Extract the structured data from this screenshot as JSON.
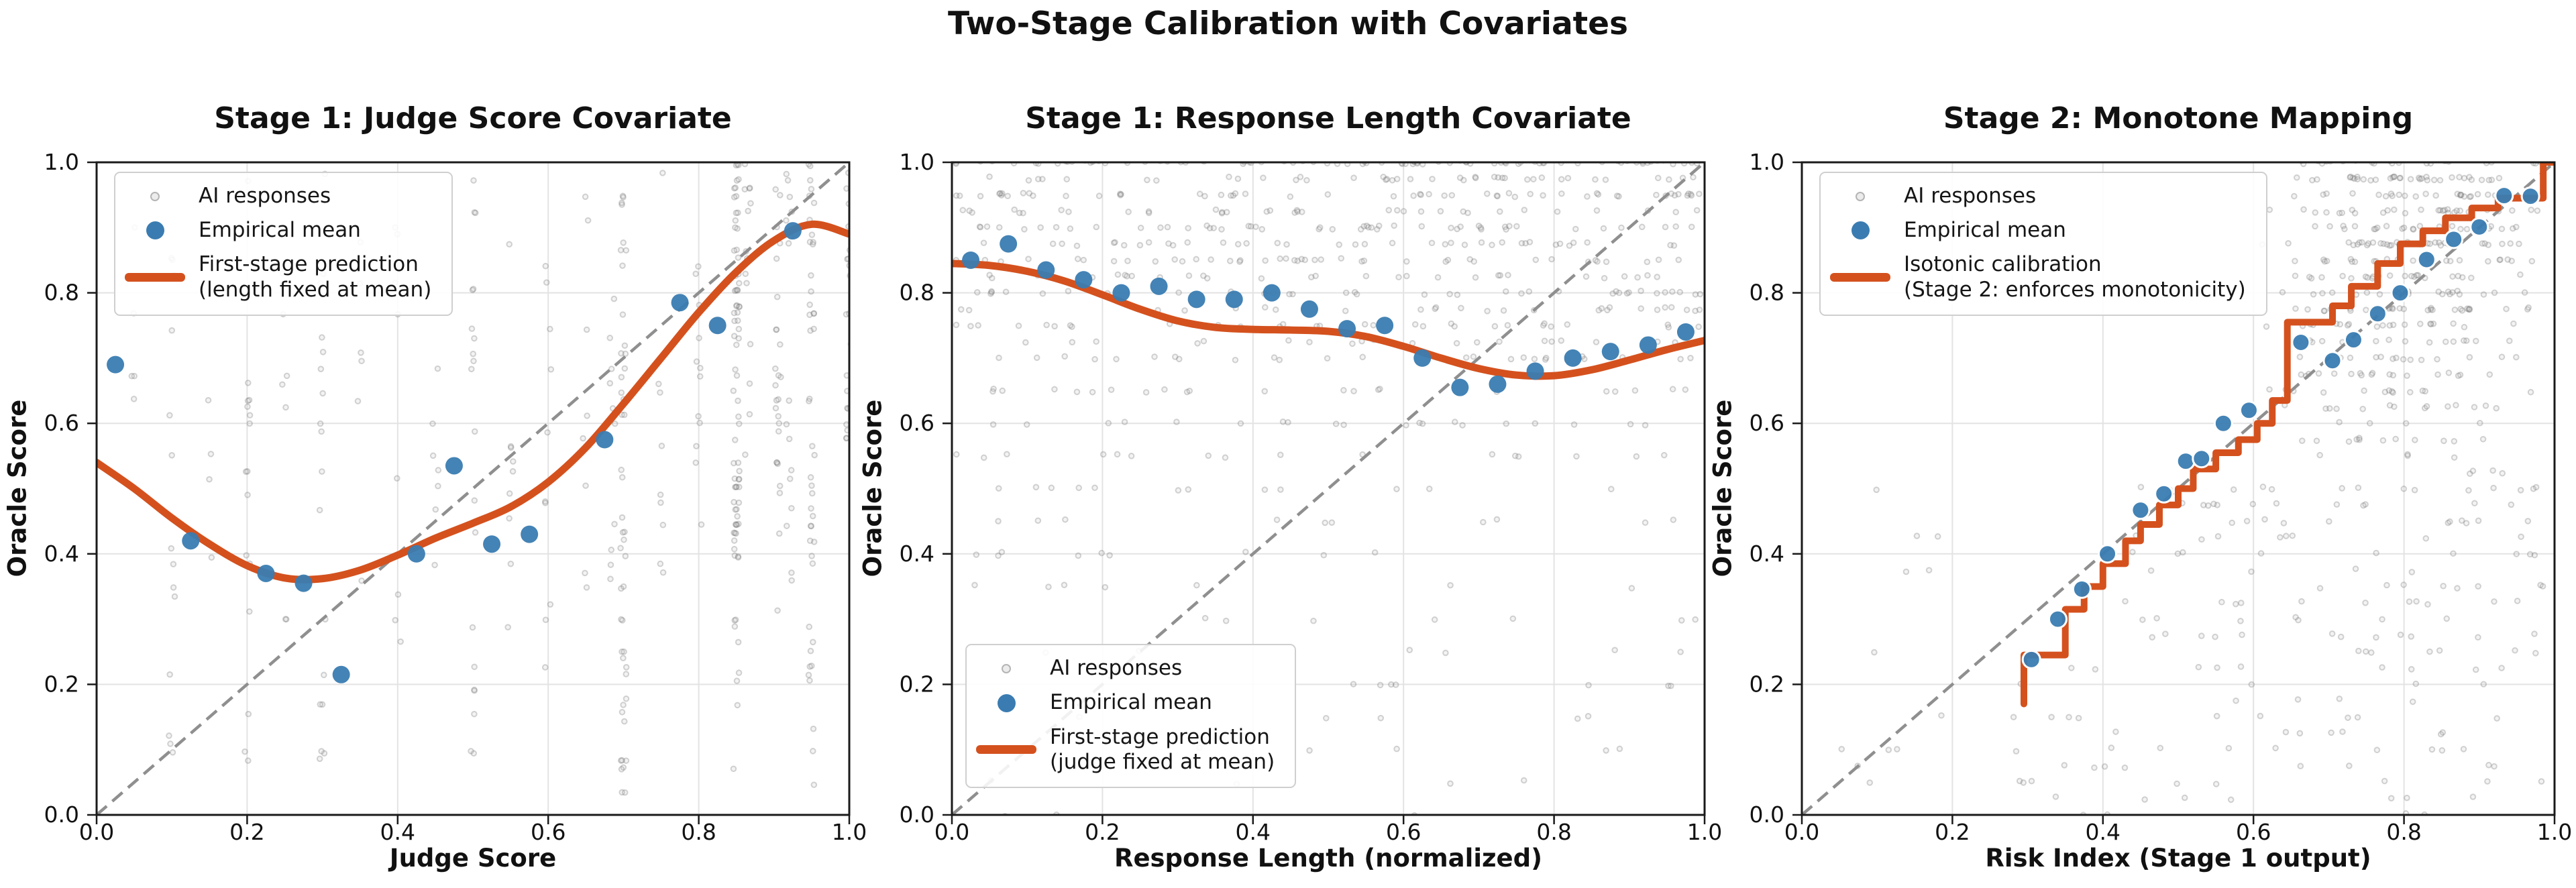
{
  "figure": {
    "suptitle": "Two-Stage Calibration with Covariates",
    "background": "#ffffff",
    "colors": {
      "orange": "#d4511e",
      "blue": "#3a7cb1",
      "identity_dash": "#8f8f8f",
      "scatter_edge": "#6f6f6f",
      "scatter_fill": "#b4b4b4",
      "grid": "#e3e3e3",
      "spine": "#1a1a1a",
      "text": "#111111",
      "legend_border": "#cfcfcf"
    }
  },
  "chart_data": [
    {
      "type": "scatter",
      "title": "Stage 1: Judge Score Covariate",
      "xlabel": "Judge Score",
      "ylabel": "Oracle Score",
      "xlim": [
        0,
        1
      ],
      "ylim": [
        0,
        1
      ],
      "xticks": [
        "0.0",
        "0.2",
        "0.4",
        "0.6",
        "0.8",
        "1.0"
      ],
      "yticks": [
        "0.0",
        "0.2",
        "0.4",
        "0.6",
        "0.8",
        "1.0"
      ],
      "grid": true,
      "identity_line": true,
      "legend": {
        "position": "upper left",
        "items": [
          {
            "label": "AI responses",
            "marker": "small-gray-dot"
          },
          {
            "label": "Empirical mean",
            "marker": "blue-dot"
          },
          {
            "label": "First-stage prediction",
            "label2": "(length fixed at mean)",
            "marker": "orange-line"
          }
        ]
      },
      "series": {
        "empirical_mean": {
          "x": [
            0.025,
            0.125,
            0.225,
            0.275,
            0.325,
            0.425,
            0.475,
            0.525,
            0.575,
            0.675,
            0.775,
            0.825,
            0.925
          ],
          "y": [
            0.69,
            0.42,
            0.37,
            0.355,
            0.215,
            0.4,
            0.535,
            0.415,
            0.43,
            0.575,
            0.785,
            0.75,
            0.895
          ]
        },
        "prediction_curve": {
          "x": [
            0.0,
            0.05,
            0.1,
            0.15,
            0.2,
            0.25,
            0.3,
            0.35,
            0.4,
            0.45,
            0.5,
            0.55,
            0.6,
            0.65,
            0.7,
            0.75,
            0.8,
            0.85,
            0.9,
            0.95,
            1.0
          ],
          "y": [
            0.54,
            0.5,
            0.455,
            0.415,
            0.382,
            0.363,
            0.362,
            0.375,
            0.398,
            0.424,
            0.447,
            0.472,
            0.51,
            0.563,
            0.63,
            0.7,
            0.77,
            0.832,
            0.88,
            0.905,
            0.89
          ]
        },
        "ai_responses_distribution": {
          "note_marker": "ring",
          "columns": [
            {
              "x": 0.05,
              "n": 5,
              "y0": 0.3,
              "y1": 1.0
            },
            {
              "x": 0.1,
              "n": 14,
              "y0": 0.05,
              "y1": 1.0
            },
            {
              "x": 0.15,
              "n": 5,
              "y0": 0.3,
              "y1": 0.9
            },
            {
              "x": 0.2,
              "n": 16,
              "y0": 0.02,
              "y1": 1.0
            },
            {
              "x": 0.25,
              "n": 7,
              "y0": 0.3,
              "y1": 0.95
            },
            {
              "x": 0.3,
              "n": 18,
              "y0": 0.0,
              "y1": 1.0
            },
            {
              "x": 0.35,
              "n": 6,
              "y0": 0.2,
              "y1": 0.9
            },
            {
              "x": 0.4,
              "n": 8,
              "y0": 0.15,
              "y1": 0.95
            },
            {
              "x": 0.45,
              "n": 7,
              "y0": 0.3,
              "y1": 0.97
            },
            {
              "x": 0.5,
              "n": 20,
              "y0": 0.08,
              "y1": 1.0
            },
            {
              "x": 0.55,
              "n": 9,
              "y0": 0.25,
              "y1": 0.95
            },
            {
              "x": 0.6,
              "n": 10,
              "y0": 0.2,
              "y1": 0.97
            },
            {
              "x": 0.65,
              "n": 9,
              "y0": 0.3,
              "y1": 0.97
            },
            {
              "x": 0.685,
              "n": 10,
              "y0": 0.35,
              "y1": 0.95
            },
            {
              "x": 0.7,
              "n": 46,
              "y0": 0.03,
              "y1": 1.0
            },
            {
              "x": 0.75,
              "n": 10,
              "y0": 0.3,
              "y1": 1.0
            },
            {
              "x": 0.8,
              "n": 12,
              "y0": 0.35,
              "y1": 1.0
            },
            {
              "x": 0.85,
              "n": 70,
              "y0": 0.4,
              "y1": 1.0
            },
            {
              "x": 0.85,
              "n": 10,
              "y0": 0.05,
              "y1": 0.4
            },
            {
              "x": 0.865,
              "n": 14,
              "y0": 0.5,
              "y1": 1.0
            },
            {
              "x": 0.905,
              "n": 26,
              "y0": 0.3,
              "y1": 1.0
            },
            {
              "x": 0.92,
              "n": 16,
              "y0": 0.35,
              "y1": 1.0
            },
            {
              "x": 0.95,
              "n": 44,
              "y0": 0.05,
              "y1": 1.0
            },
            {
              "x": 1.0,
              "n": 28,
              "y0": 0.55,
              "y1": 1.0
            }
          ]
        }
      }
    },
    {
      "type": "scatter",
      "title": "Stage 1: Response Length Covariate",
      "xlabel": "Response Length (normalized)",
      "ylabel": "Oracle Score",
      "xlim": [
        0,
        1
      ],
      "ylim": [
        0,
        1
      ],
      "xticks": [
        "0.0",
        "0.2",
        "0.4",
        "0.6",
        "0.8",
        "1.0"
      ],
      "yticks": [
        "0.0",
        "0.2",
        "0.4",
        "0.6",
        "0.8",
        "1.0"
      ],
      "grid": true,
      "identity_line": true,
      "legend": {
        "position": "lower left",
        "items": [
          {
            "label": "AI responses",
            "marker": "small-gray-dot"
          },
          {
            "label": "Empirical mean",
            "marker": "blue-dot"
          },
          {
            "label": "First-stage prediction",
            "label2": "(judge fixed at mean)",
            "marker": "orange-line"
          }
        ]
      },
      "series": {
        "empirical_mean": {
          "x": [
            0.025,
            0.075,
            0.125,
            0.175,
            0.225,
            0.275,
            0.325,
            0.375,
            0.425,
            0.475,
            0.525,
            0.575,
            0.625,
            0.675,
            0.725,
            0.775,
            0.825,
            0.875,
            0.925,
            0.975
          ],
          "y": [
            0.85,
            0.875,
            0.835,
            0.82,
            0.8,
            0.81,
            0.79,
            0.79,
            0.8,
            0.775,
            0.745,
            0.75,
            0.7,
            0.655,
            0.66,
            0.68,
            0.7,
            0.71,
            0.72,
            0.74
          ]
        },
        "prediction_curve": {
          "x": [
            0.0,
            0.05,
            0.1,
            0.15,
            0.2,
            0.25,
            0.3,
            0.35,
            0.4,
            0.45,
            0.5,
            0.55,
            0.6,
            0.65,
            0.7,
            0.75,
            0.8,
            0.85,
            0.9,
            0.95,
            1.0
          ],
          "y": [
            0.845,
            0.842,
            0.833,
            0.818,
            0.797,
            0.775,
            0.757,
            0.747,
            0.744,
            0.743,
            0.741,
            0.733,
            0.718,
            0.7,
            0.684,
            0.674,
            0.673,
            0.682,
            0.697,
            0.713,
            0.727
          ]
        },
        "ai_responses_distribution": {
          "note_marker": "ring",
          "x_range": [
            0.005,
            0.995
          ],
          "rows": [
            {
              "y": 1.0,
              "n": 85
            },
            {
              "y": 0.975,
              "n": 40
            },
            {
              "y": 0.95,
              "n": 55
            },
            {
              "y": 0.925,
              "n": 35
            },
            {
              "y": 0.9,
              "n": 50
            },
            {
              "y": 0.875,
              "n": 38
            },
            {
              "y": 0.85,
              "n": 42
            },
            {
              "y": 0.825,
              "n": 30
            },
            {
              "y": 0.8,
              "n": 36
            },
            {
              "y": 0.775,
              "n": 26
            },
            {
              "y": 0.75,
              "n": 30
            },
            {
              "y": 0.725,
              "n": 20
            },
            {
              "y": 0.7,
              "n": 26
            },
            {
              "y": 0.65,
              "n": 22
            },
            {
              "y": 0.6,
              "n": 20
            },
            {
              "y": 0.55,
              "n": 16
            },
            {
              "y": 0.5,
              "n": 12
            },
            {
              "y": 0.45,
              "n": 10
            },
            {
              "y": 0.4,
              "n": 9
            },
            {
              "y": 0.35,
              "n": 7
            },
            {
              "y": 0.3,
              "n": 7
            },
            {
              "y": 0.25,
              "n": 6
            },
            {
              "y": 0.2,
              "n": 7
            },
            {
              "y": 0.15,
              "n": 5
            },
            {
              "y": 0.1,
              "n": 5
            },
            {
              "y": 0.05,
              "n": 4
            },
            {
              "y": 0.0,
              "n": 3
            }
          ]
        }
      }
    },
    {
      "type": "scatter",
      "title": "Stage 2: Monotone Mapping",
      "xlabel": "Risk Index (Stage 1 output)",
      "ylabel": "Oracle Score",
      "xlim": [
        0,
        1
      ],
      "ylim": [
        0,
        1
      ],
      "xticks": [
        "0.0",
        "0.2",
        "0.4",
        "0.6",
        "0.8",
        "1.0"
      ],
      "yticks": [
        "0.0",
        "0.2",
        "0.4",
        "0.6",
        "0.8",
        "1.0"
      ],
      "grid": true,
      "identity_line": true,
      "legend": {
        "position": "upper left",
        "items": [
          {
            "label": "AI responses",
            "marker": "small-gray-dot"
          },
          {
            "label": "Empirical mean",
            "marker": "blue-dot"
          },
          {
            "label": "Isotonic calibration",
            "label2": "(Stage 2: enforces monotonicity)",
            "marker": "orange-line"
          }
        ]
      },
      "series": {
        "empirical_mean": {
          "x": [
            0.305,
            0.34,
            0.372,
            0.406,
            0.45,
            0.481,
            0.51,
            0.531,
            0.56,
            0.594,
            0.663,
            0.705,
            0.733,
            0.765,
            0.795,
            0.83,
            0.866,
            0.9,
            0.933,
            0.968
          ],
          "y": [
            0.238,
            0.3,
            0.346,
            0.4,
            0.467,
            0.492,
            0.542,
            0.546,
            0.6,
            0.62,
            0.724,
            0.696,
            0.728,
            0.768,
            0.8,
            0.851,
            0.882,
            0.901,
            0.949,
            0.948
          ]
        },
        "isotonic_curve": {
          "vertices": [
            [
              0.295,
              0.17
            ],
            [
              0.295,
              0.245
            ],
            [
              0.35,
              0.245
            ],
            [
              0.35,
              0.315
            ],
            [
              0.375,
              0.315
            ],
            [
              0.375,
              0.35
            ],
            [
              0.4,
              0.35
            ],
            [
              0.4,
              0.385
            ],
            [
              0.43,
              0.385
            ],
            [
              0.43,
              0.42
            ],
            [
              0.45,
              0.42
            ],
            [
              0.45,
              0.445
            ],
            [
              0.475,
              0.445
            ],
            [
              0.475,
              0.475
            ],
            [
              0.5,
              0.475
            ],
            [
              0.5,
              0.5
            ],
            [
              0.52,
              0.5
            ],
            [
              0.52,
              0.53
            ],
            [
              0.55,
              0.53
            ],
            [
              0.55,
              0.555
            ],
            [
              0.58,
              0.555
            ],
            [
              0.58,
              0.575
            ],
            [
              0.605,
              0.575
            ],
            [
              0.605,
              0.6
            ],
            [
              0.625,
              0.6
            ],
            [
              0.625,
              0.635
            ],
            [
              0.645,
              0.635
            ],
            [
              0.645,
              0.755
            ],
            [
              0.705,
              0.755
            ],
            [
              0.705,
              0.78
            ],
            [
              0.73,
              0.78
            ],
            [
              0.73,
              0.81
            ],
            [
              0.765,
              0.81
            ],
            [
              0.765,
              0.845
            ],
            [
              0.795,
              0.845
            ],
            [
              0.795,
              0.875
            ],
            [
              0.825,
              0.875
            ],
            [
              0.825,
              0.895
            ],
            [
              0.855,
              0.895
            ],
            [
              0.855,
              0.915
            ],
            [
              0.89,
              0.915
            ],
            [
              0.89,
              0.93
            ],
            [
              0.925,
              0.93
            ],
            [
              0.925,
              0.945
            ],
            [
              0.985,
              0.945
            ],
            [
              0.985,
              1.0
            ],
            [
              1.0,
              1.0
            ]
          ]
        },
        "ai_responses_distribution": {
          "note_marker": "ring",
          "blocks": [
            {
              "n": 380,
              "x": [
                0.6,
                1.0
              ],
              "y": [
                0.52,
                1.0
              ],
              "bias_x": "mid",
              "bias_y": "top"
            },
            {
              "n": 110,
              "x": [
                0.42,
                1.0
              ],
              "y": [
                0.22,
                0.52
              ]
            },
            {
              "n": 60,
              "x": [
                0.28,
                1.0
              ],
              "y": [
                0.0,
                0.22
              ]
            },
            {
              "n": 16,
              "x": [
                0.05,
                0.42
              ],
              "y": [
                0.0,
                0.5
              ]
            }
          ]
        }
      }
    }
  ]
}
